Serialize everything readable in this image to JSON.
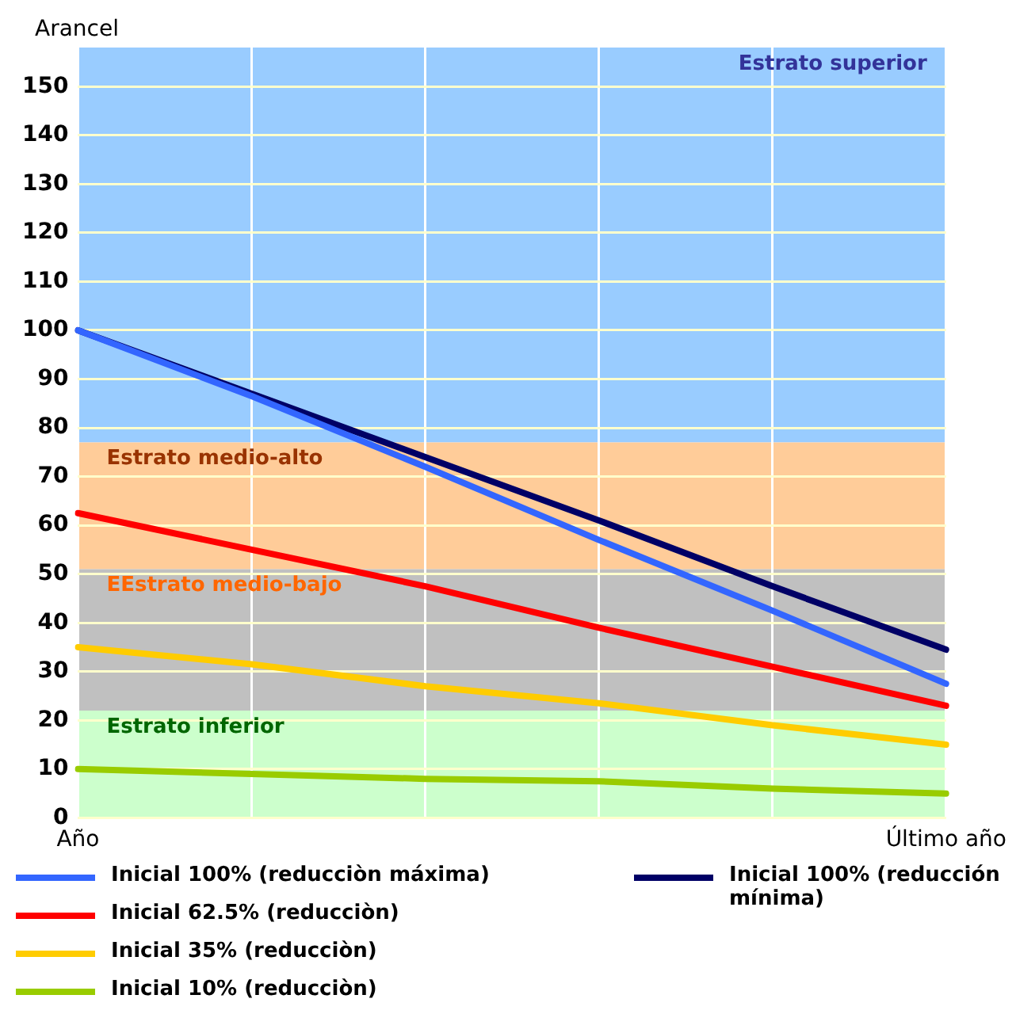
{
  "chart_data": {
    "type": "line",
    "ylabel": "Arancel",
    "categories": [
      "Año",
      null,
      null,
      null,
      null,
      "Último año"
    ],
    "series": [
      {
        "name": "Inicial 100% (reducciòn máxima)",
        "color": "#3366ff",
        "values": [
          100,
          86.5,
          72,
          57,
          42.5,
          27.5
        ]
      },
      {
        "name": "Inicial 62.5% (reducciòn)",
        "color": "#ff0000",
        "values": [
          62.5,
          55,
          47.5,
          39,
          31,
          23
        ]
      },
      {
        "name": "Inicial 35% (reducciòn)",
        "color": "#ffcc00",
        "values": [
          35,
          31.5,
          27,
          23.5,
          19,
          15
        ]
      },
      {
        "name": "Inicial 10% (reducciòn)",
        "color": "#99cc00",
        "values": [
          10,
          9,
          8,
          7.5,
          6,
          5
        ]
      },
      {
        "name": "Inicial 100% (reducción mínima)",
        "color": "#000066",
        "values": [
          100,
          87,
          74,
          61,
          47.5,
          34.5
        ]
      }
    ],
    "bands": [
      {
        "axis": "y",
        "from": 77,
        "to": 158,
        "label": "Estrato superior",
        "color": "#99ccff"
      },
      {
        "axis": "y",
        "from": 51,
        "to": 77,
        "label": "Estrato medio-alto",
        "color": "#ffcc99"
      },
      {
        "axis": "y",
        "from": 22,
        "to": 51,
        "label": "EEstrato medio-bajo",
        "color": "#c0c0c0"
      },
      {
        "axis": "y",
        "from": 0,
        "to": 22,
        "label": "Estrato inferior",
        "color": "#ccffcc"
      }
    ],
    "ylim": [
      0,
      158
    ],
    "yticks": [
      0,
      10,
      20,
      30,
      40,
      50,
      60,
      70,
      80,
      90,
      100,
      110,
      120,
      130,
      140,
      150
    ],
    "grid": true,
    "legend": "bottom",
    "marker": "none",
    "line_style": "solid"
  }
}
